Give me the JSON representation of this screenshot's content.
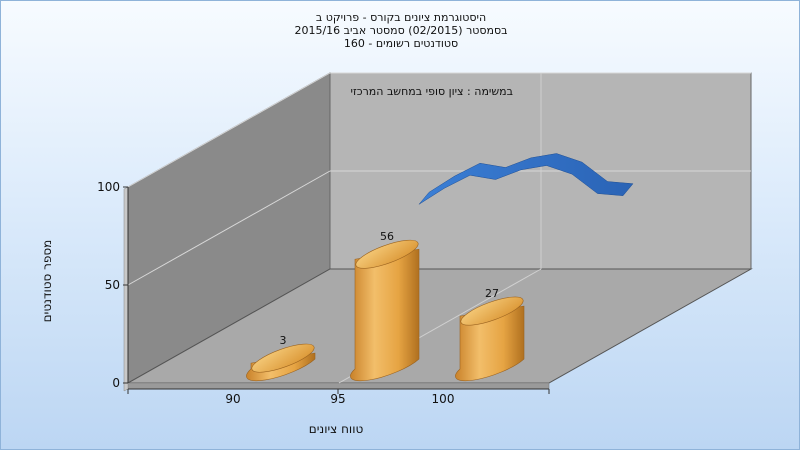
{
  "chart_data": {
    "type": "bar",
    "title_lines": [
      "היסטוגרמת ציונים בקורס - פרויקט ב",
      "בסמסטר  (02/2015)  סמסטר אביב 2015/16",
      "סטודנטים רשומים - 160"
    ],
    "annotation": "במשימה : ציון סופי במחשב המרכזי",
    "xlabel": "טווח ציונים",
    "ylabel": "מספר סטודנטים",
    "categories": [
      "90",
      "95",
      "100"
    ],
    "series": [
      {
        "values": [
          3,
          56,
          27
        ],
        "color": "#e3a03c"
      }
    ],
    "curve": {
      "x": [
        96,
        97,
        98,
        99,
        100,
        101,
        102,
        103,
        104
      ],
      "values": [
        60,
        75,
        87,
        83,
        92,
        96,
        88,
        70,
        68
      ],
      "color": "#2f6cc0"
    },
    "y_ticks": [
      0,
      50,
      100
    ],
    "ylim": [
      0,
      100
    ],
    "grid": true
  }
}
